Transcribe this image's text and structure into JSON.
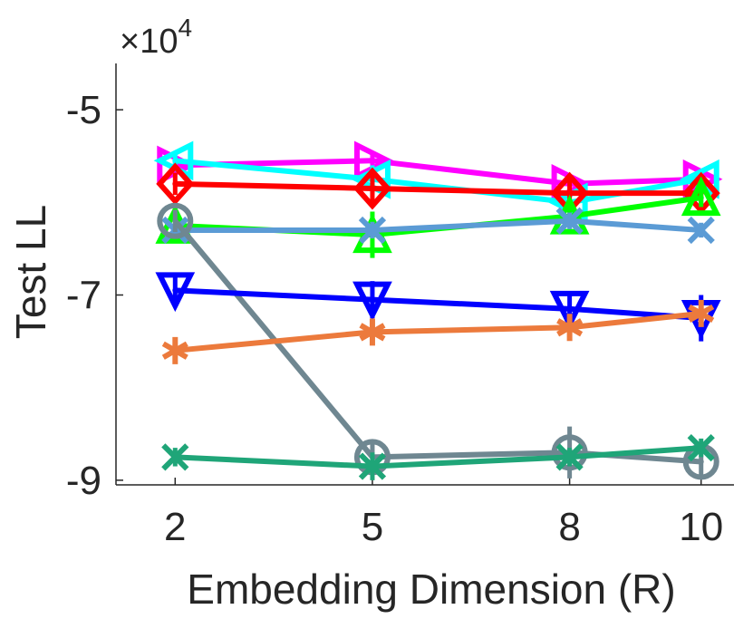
{
  "chart_data": {
    "type": "line",
    "title": "",
    "xlabel": "Embedding Dimension (R)",
    "ylabel": "Test LL",
    "x": [
      2,
      5,
      8,
      10
    ],
    "xlim": [
      1.1,
      10.5
    ],
    "ylim": [
      -90500,
      -45000
    ],
    "y_scale_label": {
      "prefix": "×10",
      "exponent": "4"
    },
    "x_ticks": [
      {
        "value": 2,
        "label": "2"
      },
      {
        "value": 5,
        "label": "5"
      },
      {
        "value": 8,
        "label": "8"
      },
      {
        "value": 10,
        "label": "10"
      }
    ],
    "y_ticks": [
      {
        "value": -50000,
        "label": "-5"
      },
      {
        "value": -70000,
        "label": "-7"
      },
      {
        "value": -90000,
        "label": "-9"
      }
    ],
    "grid": false,
    "legend": "none",
    "series": [
      {
        "name": "magenta",
        "color": "#ff00ff",
        "marker": "triangle-right",
        "values": [
          -56000,
          -55500,
          -58000,
          -57500
        ],
        "errors": [
          1000,
          1000,
          900,
          800
        ]
      },
      {
        "name": "cyan",
        "color": "#00ffff",
        "marker": "triangle-left",
        "values": [
          -55500,
          -57500,
          -60000,
          -57500
        ],
        "errors": [
          1000,
          1500,
          800,
          900
        ]
      },
      {
        "name": "red",
        "color": "#ff0000",
        "marker": "diamond",
        "values": [
          -58000,
          -58500,
          -59000,
          -59000
        ],
        "errors": [
          1200,
          1500,
          1500,
          1200
        ]
      },
      {
        "name": "green",
        "color": "#00ff00",
        "marker": "triangle-up",
        "values": [
          -62500,
          -63500,
          -61500,
          -59500
        ],
        "errors": [
          1000,
          2500,
          1200,
          1000
        ]
      },
      {
        "name": "steelblue",
        "color": "#5b9bd5",
        "marker": "x",
        "values": [
          -63000,
          -63000,
          -62000,
          -63000
        ],
        "errors": [
          700,
          900,
          900,
          800
        ]
      },
      {
        "name": "slategray",
        "color": "#6f8791",
        "marker": "circle",
        "values": [
          -62000,
          -87500,
          -87000,
          -88000
        ],
        "errors": [
          1200,
          1500,
          2800,
          1800
        ]
      },
      {
        "name": "blue",
        "color": "#0000ff",
        "marker": "triangle-down",
        "values": [
          -69500,
          -70500,
          -71500,
          -72500
        ],
        "errors": [
          1500,
          2000,
          1500,
          2500
        ]
      },
      {
        "name": "orange",
        "color": "#ec7a3c",
        "marker": "asterisk",
        "values": [
          -76000,
          -74000,
          -73500,
          -72000
        ],
        "errors": [
          1000,
          800,
          800,
          800
        ]
      },
      {
        "name": "teal",
        "color": "#1fa578",
        "marker": "x",
        "values": [
          -87500,
          -88500,
          -87500,
          -86500
        ],
        "errors": [
          1000,
          1500,
          1000,
          1000
        ]
      }
    ]
  }
}
